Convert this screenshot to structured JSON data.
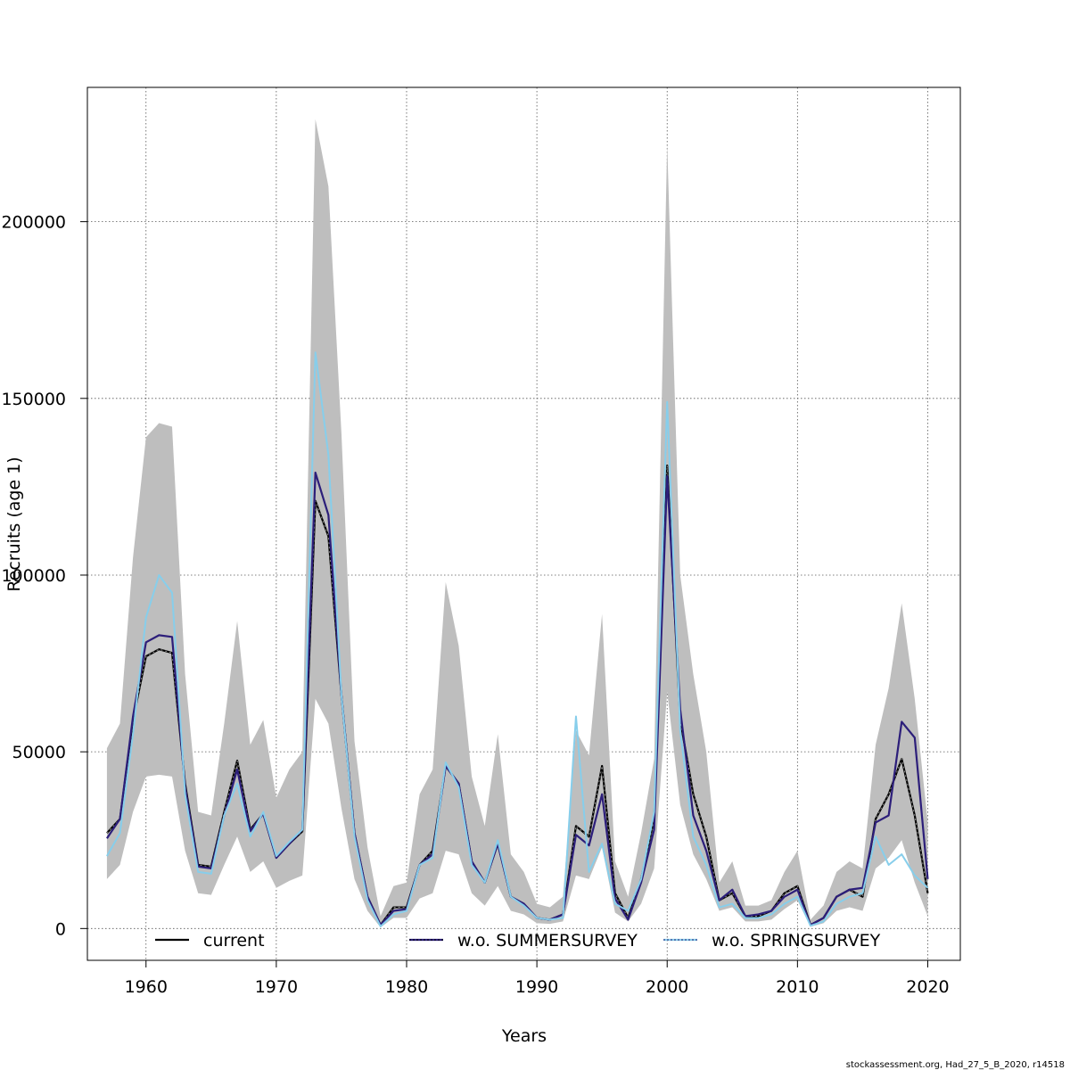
{
  "chart_data": {
    "type": "line",
    "title": "",
    "xlabel": "Years",
    "ylabel": "Recruits (age 1)",
    "xlim": [
      1955.5,
      2022.5
    ],
    "ylim": [
      -9000,
      238000
    ],
    "x_ticks": [
      1960,
      1970,
      1980,
      1990,
      2000,
      2010,
      2020
    ],
    "y_ticks": [
      0,
      50000,
      100000,
      150000,
      200000
    ],
    "y_tick_labels": [
      "0",
      "50000",
      "100000",
      "150000",
      "200000"
    ],
    "grid": true,
    "legend_position": "bottom",
    "x": [
      1957,
      1958,
      1959,
      1960,
      1961,
      1962,
      1963,
      1964,
      1965,
      1966,
      1967,
      1968,
      1969,
      1970,
      1971,
      1972,
      1973,
      1974,
      1975,
      1976,
      1977,
      1978,
      1979,
      1980,
      1981,
      1982,
      1983,
      1984,
      1985,
      1986,
      1987,
      1988,
      1989,
      1990,
      1991,
      1992,
      1993,
      1994,
      1995,
      1996,
      1997,
      1998,
      1999,
      2000,
      2001,
      2002,
      2003,
      2004,
      2005,
      2006,
      2007,
      2008,
      2009,
      2010,
      2011,
      2012,
      2013,
      2014,
      2015,
      2016,
      2017,
      2018,
      2019,
      2020
    ],
    "band": {
      "name": "confidence interval",
      "color": "#bebebe",
      "upper": [
        51000,
        58000,
        105000,
        139000,
        143000,
        142000,
        72000,
        33000,
        32000,
        58000,
        87000,
        52000,
        59000,
        37000,
        45000,
        50000,
        229000,
        210000,
        140000,
        53000,
        23000,
        3500,
        12000,
        13000,
        38000,
        45000,
        98000,
        80000,
        43000,
        29000,
        55000,
        21000,
        16000,
        7000,
        6000,
        9000,
        56000,
        49000,
        89000,
        19000,
        9000,
        27000,
        48000,
        222000,
        100000,
        72000,
        50000,
        13000,
        19000,
        6500,
        6500,
        8000,
        16000,
        22000,
        2500,
        6500,
        16000,
        19000,
        17000,
        52000,
        68000,
        92000,
        65000,
        30000
      ],
      "lower": [
        14000,
        18000,
        33000,
        43000,
        43500,
        43000,
        22000,
        10000,
        9500,
        18000,
        26000,
        16000,
        19000,
        11500,
        13500,
        15000,
        65000,
        58000,
        34000,
        14000,
        5000,
        300,
        3000,
        3000,
        8500,
        10000,
        22000,
        21000,
        10000,
        6500,
        12000,
        5000,
        4000,
        1500,
        1300,
        2000,
        15000,
        14000,
        23000,
        4500,
        2000,
        7000,
        17000,
        67000,
        35000,
        21000,
        14000,
        5000,
        6000,
        2000,
        2000,
        2500,
        5500,
        8000,
        500,
        1500,
        5000,
        6000,
        5000,
        17000,
        20000,
        25000,
        13000,
        3500
      ]
    },
    "series": [
      {
        "name": "current",
        "color": "#000000",
        "dash": "solid",
        "values": [
          27000,
          31000,
          59000,
          77000,
          79000,
          78000,
          41000,
          18000,
          17500,
          33000,
          47500,
          28000,
          32500,
          20000,
          24000,
          27500,
          121000,
          111000,
          66000,
          27000,
          9000,
          1000,
          6000,
          6000,
          18000,
          22000,
          46000,
          41000,
          19000,
          13000,
          24000,
          9000,
          7000,
          3000,
          2500,
          4000,
          29000,
          26000,
          46000,
          10000,
          3000,
          14000,
          31000,
          131000,
          59000,
          38000,
          26000,
          8000,
          10000,
          3500,
          3500,
          5000,
          10000,
          12000,
          1000,
          3000,
          9000,
          11000,
          9000,
          31000,
          38000,
          48000,
          32000,
          10000
        ]
      },
      {
        "name": "w.o. SUMMERSURVEY",
        "color": "#2c1e7a",
        "dash": "solid",
        "values": [
          25500,
          31000,
          60000,
          81000,
          83000,
          82500,
          40000,
          17500,
          17000,
          32000,
          45000,
          27500,
          32500,
          20000,
          24000,
          28000,
          129000,
          117000,
          66000,
          27000,
          9000,
          1000,
          5000,
          5500,
          18000,
          21000,
          46000,
          41000,
          19000,
          13000,
          24000,
          9000,
          7000,
          3000,
          2500,
          4000,
          26500,
          23500,
          38000,
          8500,
          2500,
          13000,
          28000,
          128000,
          62000,
          32000,
          22000,
          8000,
          11000,
          3500,
          4000,
          5000,
          9000,
          11000,
          1000,
          3000,
          9000,
          11000,
          11500,
          30000,
          32000,
          58500,
          54000,
          14000
        ]
      },
      {
        "name": "w.o. SPRINGSURVEY",
        "color": "#87ceeb",
        "dash": "solid",
        "values": [
          20500,
          27000,
          55000,
          88000,
          100000,
          95000,
          38000,
          16000,
          15500,
          32000,
          41000,
          26000,
          33000,
          20500,
          24500,
          28000,
          163000,
          134000,
          66000,
          26000,
          8000,
          600,
          4000,
          5000,
          18000,
          20000,
          47000,
          40000,
          18000,
          13000,
          25000,
          9000,
          6500,
          3000,
          2500,
          3000,
          60000,
          16000,
          24000,
          7000,
          5000,
          14000,
          33000,
          149000,
          56000,
          26000,
          18000,
          6000,
          7000,
          3000,
          3000,
          4000,
          7000,
          9000,
          800,
          2000,
          7000,
          9000,
          10000,
          26000,
          18000,
          21000,
          15000,
          11500
        ]
      }
    ],
    "legend": [
      "current",
      "w.o. SUMMERSURVEY",
      "w.o. SPRINGSURVEY"
    ]
  },
  "footer": "stockassessment.org, Had_27_5_B_2020, r14518"
}
